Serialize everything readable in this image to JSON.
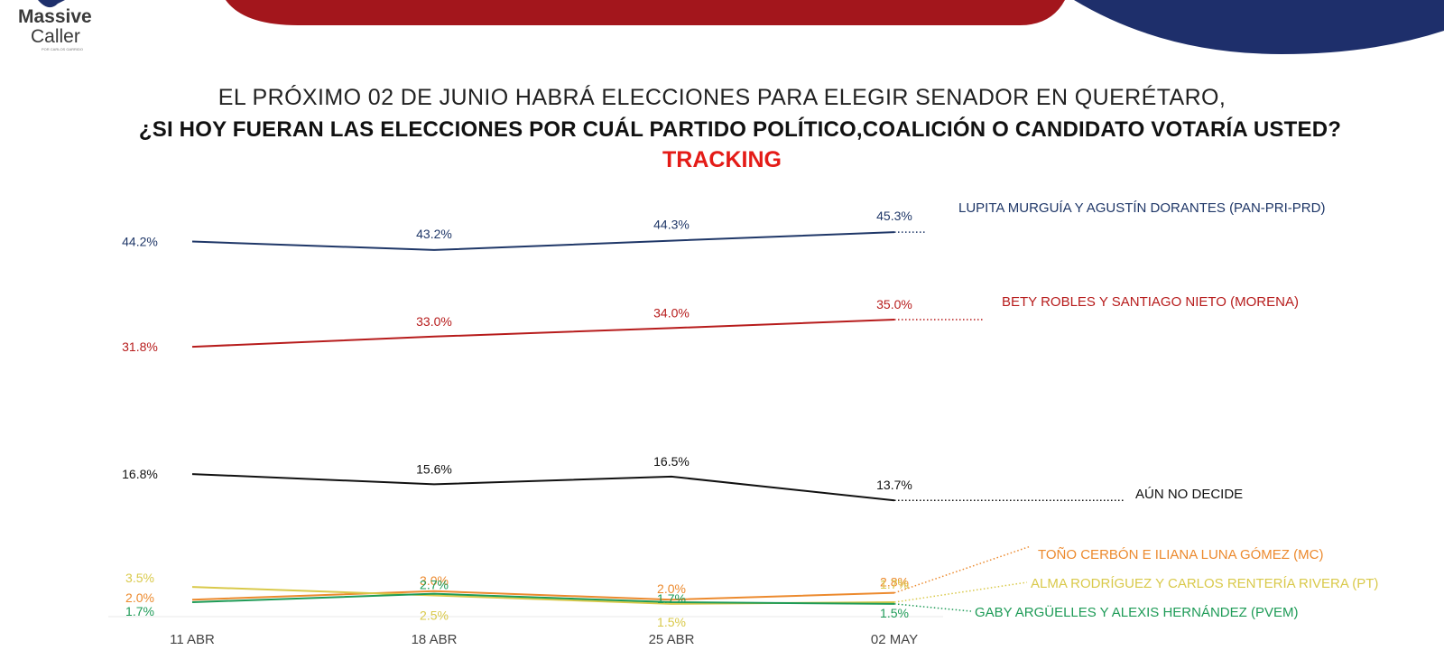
{
  "brand": {
    "name_line1": "Massive",
    "name_line2": "Caller",
    "tagline": "POR CARLOS GARRIDO"
  },
  "header": {
    "title_line1": "EL PRÓXIMO 02 DE JUNIO HABRÁ ELECCIONES PARA ELEGIR SENADOR EN QUERÉTARO,",
    "title_line2": "¿SI HOY FUERAN LAS ELECCIONES POR CUÁL PARTIDO POLÍTICO,COALICIÓN O CANDIDATO VOTARÍA USTED?",
    "title_line3": "TRACKING"
  },
  "chart_data": {
    "type": "line",
    "title": "TRACKING",
    "categories": [
      "11 ABR",
      "18 ABR",
      "25 ABR",
      "02 MAY"
    ],
    "ylim": [
      0,
      50
    ],
    "grid": false,
    "legend": "right, at end of each line",
    "series": [
      {
        "name": "LUPITA MURGUÍA Y AGUSTÍN DORANTES (PAN-PRI-PRD)",
        "color": "#1f3768",
        "values": [
          44.2,
          43.2,
          44.3,
          45.3
        ],
        "labels": [
          "44.2%",
          "43.2%",
          "44.3%",
          "45.3%"
        ]
      },
      {
        "name": "BETY ROBLES Y SANTIAGO NIETO (MORENA)",
        "color": "#b71c1c",
        "values": [
          31.8,
          33.0,
          34.0,
          35.0
        ],
        "labels": [
          "31.8%",
          "33.0%",
          "34.0%",
          "35.0%"
        ]
      },
      {
        "name": "AÚN NO DECIDE",
        "color": "#111111",
        "values": [
          16.8,
          15.6,
          16.5,
          13.7
        ],
        "labels": [
          "16.8%",
          "15.6%",
          "16.5%",
          "13.7%"
        ]
      },
      {
        "name": "TOÑO CERBÓN E ILIANA LUNA GÓMEZ (MC)",
        "color": "#ec8a2e",
        "values": [
          2.0,
          3.0,
          2.0,
          2.8
        ],
        "labels": [
          "2.0%",
          "3.0%",
          "2.0%",
          "2.8%"
        ]
      },
      {
        "name": "ALMA RODRÍGUEZ Y CARLOS RENTERÍA RIVERA (PT)",
        "color": "#d9c94a",
        "values": [
          3.5,
          2.5,
          1.5,
          1.7
        ],
        "labels": [
          "3.5%",
          "2.5%",
          "1.5%",
          "1.7%"
        ]
      },
      {
        "name": "GABY ARGÜELLES Y ALEXIS HERNÁNDEZ (PVEM)",
        "color": "#1e9b57",
        "values": [
          1.7,
          2.7,
          1.7,
          1.5
        ],
        "labels": [
          "1.7%",
          "2.7%",
          "1.7%",
          "1.5%"
        ]
      }
    ]
  }
}
